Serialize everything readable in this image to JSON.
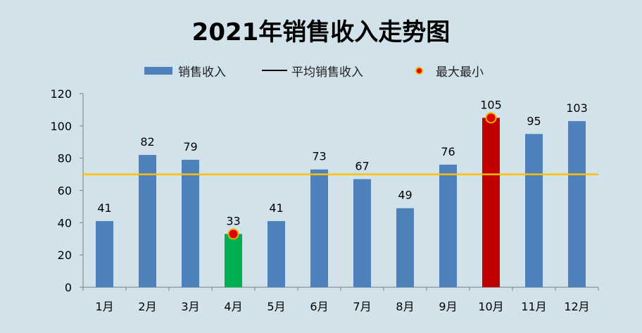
{
  "chart_data": {
    "type": "bar",
    "title": "2021年销售收入走势图",
    "categories": [
      "1月",
      "2月",
      "3月",
      "4月",
      "5月",
      "6月",
      "7月",
      "8月",
      "9月",
      "10月",
      "11月",
      "12月"
    ],
    "series": [
      {
        "name": "销售收入",
        "values": [
          41,
          82,
          79,
          33,
          41,
          73,
          67,
          49,
          76,
          105,
          95,
          103
        ]
      }
    ],
    "average_line": {
      "name": "平均销售收入",
      "value": 70
    },
    "extremes": {
      "name": "最大最小",
      "max_index": 9,
      "min_index": 3
    },
    "ylim": [
      0,
      120
    ],
    "yticks": [
      0,
      20,
      40,
      60,
      80,
      100,
      120
    ],
    "grid": false,
    "legend_position": "top-center",
    "colors": {
      "bar": "#4f81bd",
      "max_bar": "#c00000",
      "min_bar": "#00b050",
      "average_line": "#ffc000",
      "marker_fill": "#e00000",
      "marker_border": "#e6b400",
      "axis": "#7f7f7f",
      "background": "#d2e2ea"
    }
  }
}
